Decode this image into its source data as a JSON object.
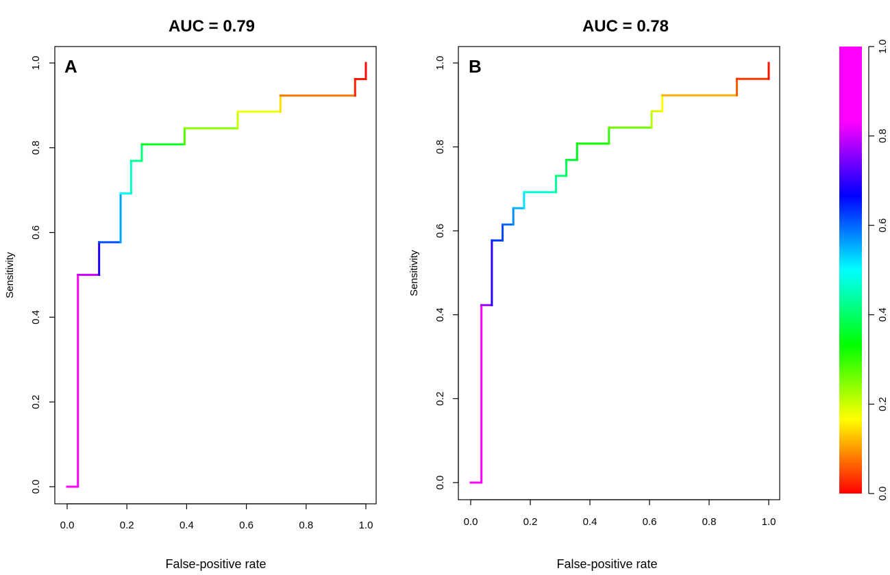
{
  "chart_data": [
    {
      "type": "line",
      "panel": "A",
      "title": "AUC = 0.79",
      "xlabel": "False-positive rate",
      "ylabel": "Sensitivity",
      "xlim": [
        0,
        1
      ],
      "ylim": [
        0,
        1
      ],
      "x_ticks": [
        "0.0",
        "0.2",
        "0.4",
        "0.6",
        "0.8",
        "1.0"
      ],
      "y_ticks": [
        "0.0",
        "0.2",
        "0.4",
        "0.6",
        "0.8",
        "1.0"
      ],
      "roc_steps": [
        {
          "fpr": 0.0,
          "tpr": 0.0,
          "threshold": 1.0
        },
        {
          "fpr": 0.036,
          "tpr": 0.0,
          "threshold": 0.99
        },
        {
          "fpr": 0.036,
          "tpr": 0.5,
          "threshold": 0.86
        },
        {
          "fpr": 0.107,
          "tpr": 0.5,
          "threshold": 0.74
        },
        {
          "fpr": 0.107,
          "tpr": 0.577,
          "threshold": 0.63
        },
        {
          "fpr": 0.179,
          "tpr": 0.577,
          "threshold": 0.6
        },
        {
          "fpr": 0.179,
          "tpr": 0.692,
          "threshold": 0.52
        },
        {
          "fpr": 0.214,
          "tpr": 0.692,
          "threshold": 0.48
        },
        {
          "fpr": 0.214,
          "tpr": 0.769,
          "threshold": 0.44
        },
        {
          "fpr": 0.25,
          "tpr": 0.769,
          "threshold": 0.42
        },
        {
          "fpr": 0.25,
          "tpr": 0.808,
          "threshold": 0.4
        },
        {
          "fpr": 0.393,
          "tpr": 0.808,
          "threshold": 0.3
        },
        {
          "fpr": 0.393,
          "tpr": 0.846,
          "threshold": 0.26
        },
        {
          "fpr": 0.571,
          "tpr": 0.846,
          "threshold": 0.22
        },
        {
          "fpr": 0.571,
          "tpr": 0.885,
          "threshold": 0.19
        },
        {
          "fpr": 0.714,
          "tpr": 0.885,
          "threshold": 0.16
        },
        {
          "fpr": 0.714,
          "tpr": 0.923,
          "threshold": 0.13
        },
        {
          "fpr": 0.964,
          "tpr": 0.923,
          "threshold": 0.03
        },
        {
          "fpr": 0.964,
          "tpr": 0.962,
          "threshold": 0.02
        },
        {
          "fpr": 1.0,
          "tpr": 0.962,
          "threshold": 0.01
        },
        {
          "fpr": 1.0,
          "tpr": 1.0,
          "threshold": 0.0
        }
      ]
    },
    {
      "type": "line",
      "panel": "B",
      "title": "AUC = 0.78",
      "xlabel": "False-positive rate",
      "ylabel": "Sensitivity",
      "xlim": [
        0,
        1
      ],
      "ylim": [
        0,
        1
      ],
      "x_ticks": [
        "0.0",
        "0.2",
        "0.4",
        "0.6",
        "0.8",
        "1.0"
      ],
      "y_ticks": [
        "0.0",
        "0.2",
        "0.4",
        "0.6",
        "0.8",
        "1.0"
      ],
      "roc_steps": [
        {
          "fpr": 0.0,
          "tpr": 0.0,
          "threshold": 1.0
        },
        {
          "fpr": 0.036,
          "tpr": 0.0,
          "threshold": 0.99
        },
        {
          "fpr": 0.036,
          "tpr": 0.423,
          "threshold": 0.8
        },
        {
          "fpr": 0.071,
          "tpr": 0.423,
          "threshold": 0.74
        },
        {
          "fpr": 0.071,
          "tpr": 0.577,
          "threshold": 0.64
        },
        {
          "fpr": 0.107,
          "tpr": 0.577,
          "threshold": 0.63
        },
        {
          "fpr": 0.107,
          "tpr": 0.615,
          "threshold": 0.61
        },
        {
          "fpr": 0.143,
          "tpr": 0.615,
          "threshold": 0.59
        },
        {
          "fpr": 0.143,
          "tpr": 0.654,
          "threshold": 0.56
        },
        {
          "fpr": 0.179,
          "tpr": 0.654,
          "threshold": 0.54
        },
        {
          "fpr": 0.179,
          "tpr": 0.692,
          "threshold": 0.5
        },
        {
          "fpr": 0.286,
          "tpr": 0.692,
          "threshold": 0.45
        },
        {
          "fpr": 0.286,
          "tpr": 0.731,
          "threshold": 0.42
        },
        {
          "fpr": 0.321,
          "tpr": 0.731,
          "threshold": 0.4
        },
        {
          "fpr": 0.321,
          "tpr": 0.769,
          "threshold": 0.38
        },
        {
          "fpr": 0.357,
          "tpr": 0.769,
          "threshold": 0.36
        },
        {
          "fpr": 0.357,
          "tpr": 0.808,
          "threshold": 0.34
        },
        {
          "fpr": 0.464,
          "tpr": 0.808,
          "threshold": 0.31
        },
        {
          "fpr": 0.464,
          "tpr": 0.846,
          "threshold": 0.29
        },
        {
          "fpr": 0.607,
          "tpr": 0.846,
          "threshold": 0.23
        },
        {
          "fpr": 0.607,
          "tpr": 0.885,
          "threshold": 0.2
        },
        {
          "fpr": 0.643,
          "tpr": 0.885,
          "threshold": 0.18
        },
        {
          "fpr": 0.643,
          "tpr": 0.923,
          "threshold": 0.16
        },
        {
          "fpr": 0.893,
          "tpr": 0.923,
          "threshold": 0.07
        },
        {
          "fpr": 0.893,
          "tpr": 0.962,
          "threshold": 0.05
        },
        {
          "fpr": 1.0,
          "tpr": 0.962,
          "threshold": 0.02
        },
        {
          "fpr": 1.0,
          "tpr": 1.0,
          "threshold": 0.0
        }
      ]
    }
  ],
  "colorbar": {
    "range": [
      0,
      1
    ],
    "tick_labels": [
      "0.0",
      "0.2",
      "0.4",
      "0.6",
      "0.8",
      "1.0"
    ],
    "scale": "rainbow red-to-magenta",
    "colors": [
      "#ff0000",
      "#ffff00",
      "#00ff00",
      "#00ffff",
      "#0000ff",
      "#ff00ff"
    ]
  }
}
